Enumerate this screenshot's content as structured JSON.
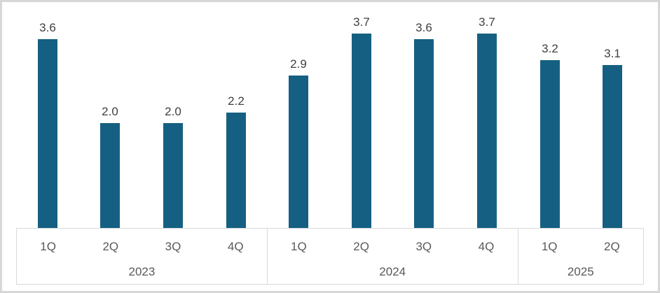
{
  "chart_data": {
    "type": "bar",
    "title": "",
    "xlabel": "",
    "ylabel": "",
    "legend": false,
    "grid": false,
    "data_labels": true,
    "value_decimals": 1,
    "ylim": [
      0,
      4.3
    ],
    "categories": [
      "1Q",
      "2Q",
      "3Q",
      "4Q",
      "1Q",
      "2Q",
      "3Q",
      "4Q",
      "1Q",
      "2Q"
    ],
    "values": [
      3.6,
      2.0,
      2.0,
      2.2,
      2.9,
      3.7,
      3.6,
      3.7,
      3.2,
      3.1
    ],
    "groups": [
      {
        "label": "2023",
        "categories": [
          "1Q",
          "2Q",
          "3Q",
          "4Q"
        ],
        "values": [
          3.6,
          2.0,
          2.0,
          2.2
        ]
      },
      {
        "label": "2024",
        "categories": [
          "1Q",
          "2Q",
          "3Q",
          "4Q"
        ],
        "values": [
          2.9,
          3.7,
          3.6,
          3.7
        ]
      },
      {
        "label": "2025",
        "categories": [
          "1Q",
          "2Q"
        ],
        "values": [
          3.2,
          3.1
        ]
      }
    ],
    "colors": {
      "bar": "#156082",
      "data_label_text": "#404040",
      "axis_text": "#595959",
      "axis_border": "#d9d9d9",
      "outer_border": "#d7d7d7",
      "background": "#ffffff"
    }
  }
}
